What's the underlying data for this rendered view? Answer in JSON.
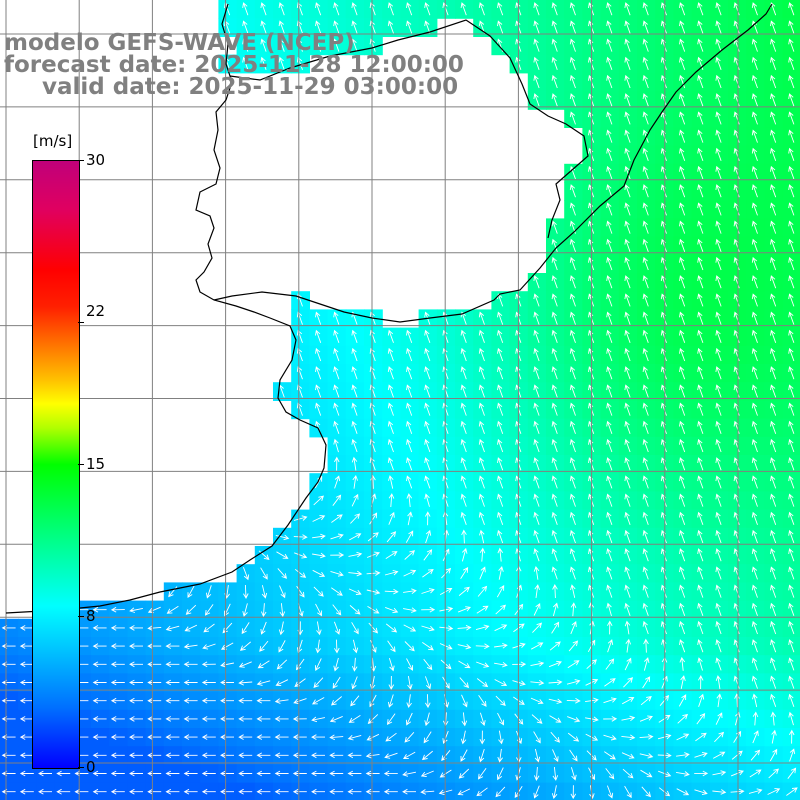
{
  "title": {
    "line1": "modelo GEFS-WAVE (NCEP)",
    "line2": "forecast date: 2025-11-28 12:00:00",
    "line3": "valid date: 2025-11-29 03:00:00"
  },
  "colorbar": {
    "unit": "[m/s]",
    "ticks": [
      "30",
      "22",
      "15",
      "8",
      "0"
    ],
    "tick_values": [
      30,
      22,
      15,
      8,
      0
    ],
    "min": 0,
    "max": 30
  },
  "colors": {
    "land": "#ffffff",
    "grid": "#808080",
    "coast": "#000000",
    "arrows": "#ffffff"
  },
  "field": {
    "description_vars": "wind speed magnitude (m/s) with direction arrows",
    "dominant_direction_offshore": "from south/southeast",
    "dominant_direction_southwest": "from east"
  }
}
